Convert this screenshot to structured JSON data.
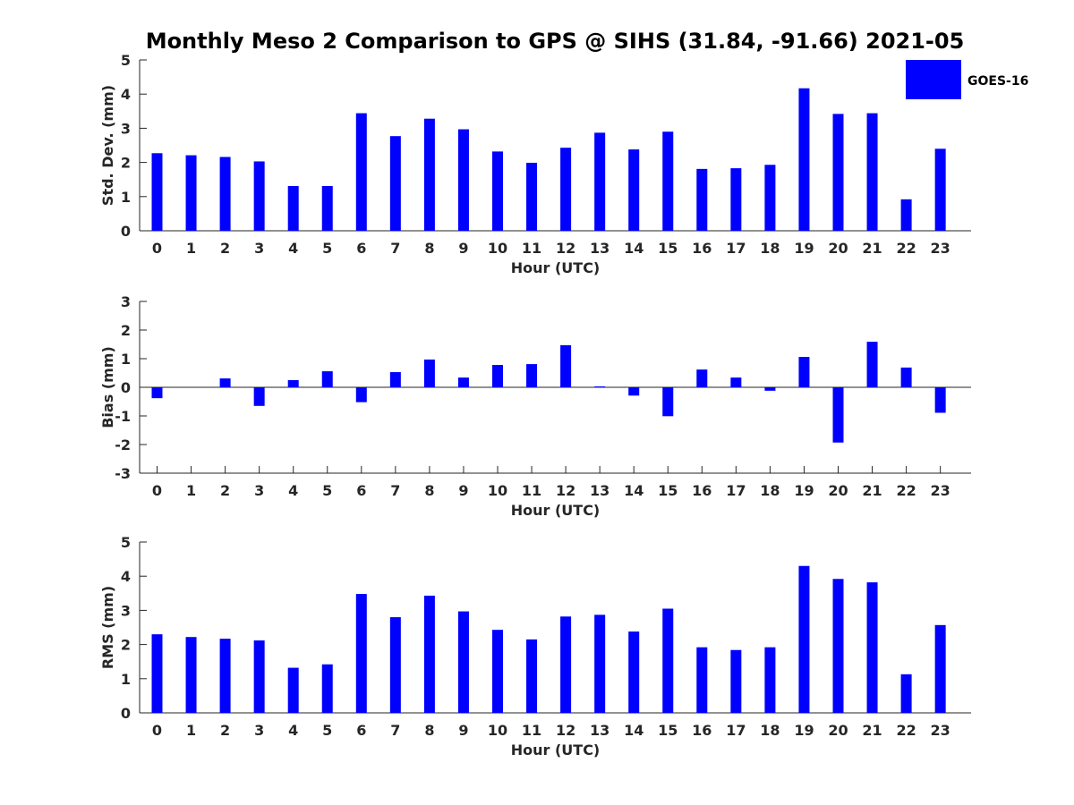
{
  "title": "Monthly Meso 2 Comparison to GPS @ SIHS (31.84, -91.66) 2021-05",
  "legend": {
    "label": "GOES-16",
    "color": "#0000ff",
    "placement": "top-right, outside plot"
  },
  "colors": {
    "bar": "#0000ff",
    "axis": "#262626"
  },
  "chart_data": [
    {
      "type": "bar",
      "xlabel": "Hour (UTC)",
      "ylabel": "Std. Dev. (mm)",
      "ylim": [
        0,
        5
      ],
      "yticks": [
        0,
        1,
        2,
        3,
        4,
        5
      ],
      "categories": [
        "0",
        "1",
        "2",
        "3",
        "4",
        "5",
        "6",
        "7",
        "8",
        "9",
        "10",
        "11",
        "12",
        "13",
        "14",
        "15",
        "16",
        "17",
        "18",
        "19",
        "20",
        "21",
        "22",
        "23"
      ],
      "series": [
        {
          "name": "GOES-16",
          "values": [
            2.27,
            2.21,
            2.16,
            2.03,
            1.31,
            1.31,
            3.44,
            2.77,
            3.28,
            2.97,
            2.32,
            1.99,
            2.43,
            2.87,
            2.38,
            2.9,
            1.81,
            1.83,
            1.93,
            4.17,
            3.42,
            3.44,
            0.92,
            2.4
          ]
        }
      ],
      "grid": false,
      "zero_line": false
    },
    {
      "type": "bar",
      "xlabel": "Hour (UTC)",
      "ylabel": "Bias (mm)",
      "ylim": [
        -3,
        3
      ],
      "yticks": [
        -3,
        -2,
        -1,
        0,
        1,
        2,
        3
      ],
      "categories": [
        "0",
        "1",
        "2",
        "3",
        "4",
        "5",
        "6",
        "7",
        "8",
        "9",
        "10",
        "11",
        "12",
        "13",
        "14",
        "15",
        "16",
        "17",
        "18",
        "19",
        "20",
        "21",
        "22",
        "23"
      ],
      "series": [
        {
          "name": "GOES-16",
          "values": [
            -0.38,
            0.0,
            0.31,
            -0.65,
            0.25,
            0.56,
            -0.52,
            0.53,
            0.97,
            0.34,
            0.78,
            0.81,
            1.47,
            0.03,
            -0.29,
            -1.01,
            0.62,
            0.34,
            -0.12,
            1.06,
            -1.93,
            1.59,
            0.69,
            -0.89
          ]
        }
      ],
      "grid": false,
      "zero_line": true
    },
    {
      "type": "bar",
      "xlabel": "Hour (UTC)",
      "ylabel": "RMS (mm)",
      "ylim": [
        0,
        5
      ],
      "yticks": [
        0,
        1,
        2,
        3,
        4,
        5
      ],
      "categories": [
        "0",
        "1",
        "2",
        "3",
        "4",
        "5",
        "6",
        "7",
        "8",
        "9",
        "10",
        "11",
        "12",
        "13",
        "14",
        "15",
        "16",
        "17",
        "18",
        "19",
        "20",
        "21",
        "22",
        "23"
      ],
      "series": [
        {
          "name": "GOES-16",
          "values": [
            2.3,
            2.22,
            2.17,
            2.12,
            1.32,
            1.42,
            3.48,
            2.8,
            3.43,
            2.97,
            2.43,
            2.15,
            2.82,
            2.87,
            2.38,
            3.05,
            1.92,
            1.84,
            1.92,
            4.3,
            3.92,
            3.82,
            1.13,
            2.57
          ]
        }
      ],
      "grid": false,
      "zero_line": false
    }
  ]
}
